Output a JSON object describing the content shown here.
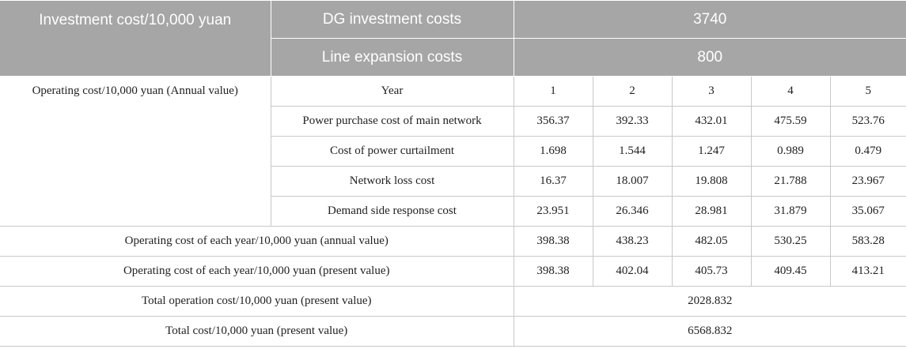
{
  "investment": {
    "label": "Investment cost/10,000 yuan",
    "dg_label": "DG investment costs",
    "dg_value": "3740",
    "line_label": "Line expansion costs",
    "line_value": "800"
  },
  "operating": {
    "label": "Operating cost/10,000 yuan (Annual value)",
    "year_label": "Year",
    "years": [
      "1",
      "2",
      "3",
      "4",
      "5"
    ],
    "rows": [
      {
        "label": "Power purchase cost of main network",
        "values": [
          "356.37",
          "392.33",
          "432.01",
          "475.59",
          "523.76"
        ]
      },
      {
        "label": "Cost of power curtailment",
        "values": [
          "1.698",
          "1.544",
          "1.247",
          "0.989",
          "0.479"
        ]
      },
      {
        "label": "Network loss cost",
        "values": [
          "16.37",
          "18.007",
          "19.808",
          "21.788",
          "23.967"
        ]
      },
      {
        "label": "Demand side response cost",
        "values": [
          "23.951",
          "26.346",
          "28.981",
          "31.879",
          "35.067"
        ]
      }
    ]
  },
  "summary": {
    "annual": {
      "label": "Operating cost of each year/10,000 yuan (annual value)",
      "values": [
        "398.38",
        "438.23",
        "482.05",
        "530.25",
        "583.28"
      ]
    },
    "present": {
      "label": "Operating cost of each year/10,000 yuan (present value)",
      "values": [
        "398.38",
        "402.04",
        "405.73",
        "409.45",
        "413.21"
      ]
    },
    "total_operation": {
      "label": "Total operation cost/10,000 yuan (present value)",
      "value": "2028.832"
    },
    "total_cost": {
      "label": "Total cost/10,000 yuan (present value)",
      "value": "6568.832"
    }
  }
}
